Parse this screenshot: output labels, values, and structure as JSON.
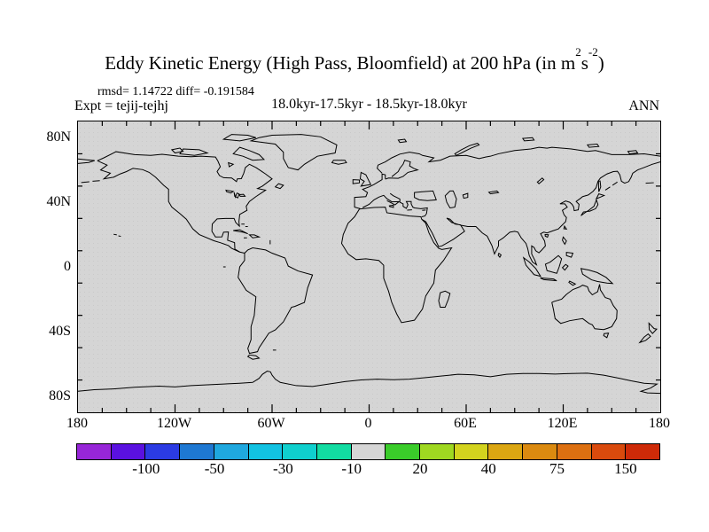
{
  "title": {
    "text_pre": "Eddy Kinetic Energy (High Pass, Bloomfield) at 200 hPa (in m",
    "sup_a": "2",
    "text_mid": "s",
    "sup_b": "-2",
    "text_post": ")"
  },
  "stats_line": "rmsd= 1.14722 diff= -0.191584",
  "annotations": {
    "experiment": "Expt = tejij-tejhj",
    "period": "18.0kyr-17.5kyr - 18.5kyr-18.0kyr",
    "season": "ANN"
  },
  "map": {
    "fill_color": "#d5d5d5",
    "coast_color": "#000000",
    "y_axis_labels": [
      {
        "text": "80N",
        "lat": 80
      },
      {
        "text": "40N",
        "lat": 40
      },
      {
        "text": "0",
        "lat": 0
      },
      {
        "text": "40S",
        "lat": -40
      },
      {
        "text": "80S",
        "lat": -80
      }
    ],
    "x_axis_labels": [
      {
        "text": "180",
        "lon": -180
      },
      {
        "text": "120W",
        "lon": -120
      },
      {
        "text": "60W",
        "lon": -60
      },
      {
        "text": "0",
        "lon": 0
      },
      {
        "text": "60E",
        "lon": 60
      },
      {
        "text": "120E",
        "lon": 120
      },
      {
        "text": "180",
        "lon": 180
      }
    ],
    "lat_tick_step": 20,
    "lon_tick_step": 15
  },
  "colorbar": {
    "segment_colors": [
      "#9726d8",
      "#5a11e0",
      "#2b3be3",
      "#1e78d2",
      "#1fa8df",
      "#12c2e2",
      "#0fd0ce",
      "#12dca2",
      "#d6d6d6",
      "#3acc2a",
      "#9fd821",
      "#d3d31e",
      "#dba612",
      "#db8a10",
      "#dd7011",
      "#d94a0d",
      "#ce2a08"
    ],
    "labels": [
      {
        "text": "-100",
        "boundary": 2
      },
      {
        "text": "-50",
        "boundary": 4
      },
      {
        "text": "-30",
        "boundary": 6
      },
      {
        "text": "-10",
        "boundary": 8
      },
      {
        "text": "20",
        "boundary": 10
      },
      {
        "text": "40",
        "boundary": 12
      },
      {
        "text": "75",
        "boundary": 14
      },
      {
        "text": "150",
        "boundary": 16
      }
    ]
  },
  "chart_data": {
    "type": "heatmap",
    "subtype": "filled-contour difference map on equirectangular world projection",
    "title": "Eddy Kinetic Energy (High Pass, Bloomfield) at 200 hPa (in m2s-2)",
    "experiment": "tejij-tejhj",
    "period": "18.0kyr-17.5kyr - 18.5kyr-18.0kyr",
    "season": "ANN",
    "rmsd": 1.14722,
    "diff": -0.191584,
    "lon_range": [
      -180,
      180
    ],
    "lat_range": [
      -90,
      90
    ],
    "x_tick_labels": [
      "180",
      "120W",
      "60W",
      "0",
      "60E",
      "120E",
      "180"
    ],
    "y_tick_labels": [
      "80N",
      "40N",
      "0",
      "40S",
      "80S"
    ],
    "contour_levels": [
      -150,
      -100,
      -75,
      -50,
      -40,
      -30,
      -20,
      -10,
      10,
      20,
      30,
      40,
      50,
      75,
      100,
      150
    ],
    "colorbar_tick_labels": [
      -100,
      -50,
      -30,
      -10,
      20,
      40,
      75,
      150
    ],
    "colorbar_colors": [
      "#9726d8",
      "#5a11e0",
      "#2b3be3",
      "#1e78d2",
      "#1fa8df",
      "#12c2e2",
      "#0fd0ce",
      "#12dca2",
      "#d6d6d6",
      "#3acc2a",
      "#9fd821",
      "#d3d31e",
      "#dba612",
      "#db8a10",
      "#dd7011",
      "#d94a0d",
      "#ce2a08"
    ],
    "field_note": "All plotted difference values fall inside the -10..10 bin, so the whole map renders as uniform gray with black coastlines only",
    "grid": false,
    "legend_position": "bottom horizontal colorbar"
  }
}
